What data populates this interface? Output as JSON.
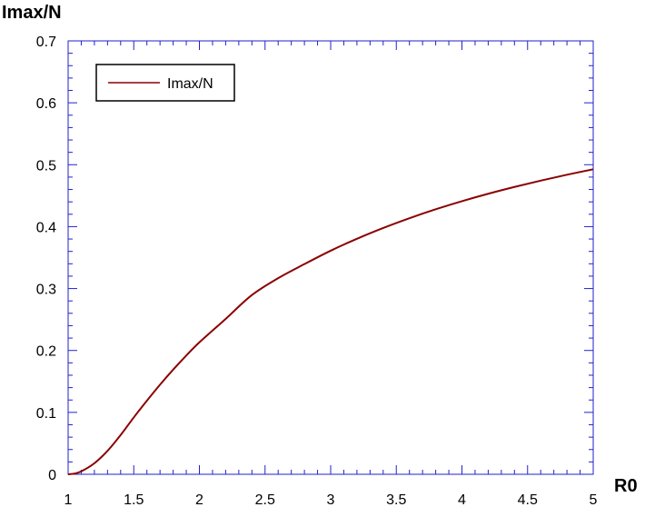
{
  "colors": {
    "frame": "#2222cc",
    "series": "#8b0000",
    "background": "#ffffff"
  },
  "chart_data": {
    "type": "line",
    "title": "",
    "xlabel": "R0",
    "ylabel": "Imax/N",
    "xlim": [
      1,
      5
    ],
    "ylim": [
      0,
      0.7
    ],
    "xticks": [
      "1",
      "1.5",
      "2",
      "2.5",
      "3",
      "3.5",
      "4",
      "4.5",
      "5"
    ],
    "yticks": [
      "0",
      "0.1",
      "0.2",
      "0.3",
      "0.4",
      "0.5",
      "0.6",
      "0.7"
    ],
    "grid": false,
    "legend": {
      "position": "top-left",
      "entries": [
        "Imax/N"
      ]
    },
    "series": [
      {
        "name": "Imax/N",
        "x": [
          1.0,
          1.05,
          1.1,
          1.2,
          1.3,
          1.4,
          1.5,
          1.6,
          1.7,
          1.8,
          1.9,
          2.0,
          2.2,
          2.4,
          2.6,
          2.8,
          3.0,
          3.2,
          3.4,
          3.6,
          3.8,
          4.0,
          4.2,
          4.4,
          4.6,
          4.8,
          5.0
        ],
        "y": [
          0.0,
          0.0012,
          0.0047,
          0.0178,
          0.0378,
          0.0634,
          0.0918,
          0.1188,
          0.1447,
          0.169,
          0.1918,
          0.2131,
          0.251,
          0.2895,
          0.3168,
          0.3395,
          0.3611,
          0.3804,
          0.3978,
          0.4136,
          0.428,
          0.4411,
          0.4531,
          0.4641,
          0.4743,
          0.4838,
          0.4926
        ]
      }
    ]
  }
}
